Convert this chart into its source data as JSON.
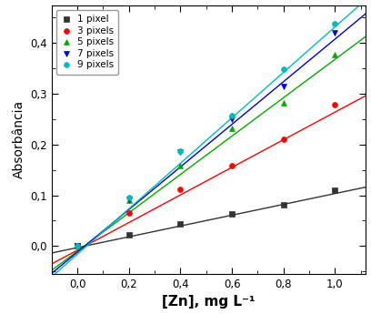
{
  "title": "",
  "xlabel": "[Zn], mg L⁻¹",
  "ylabel": "Absorbância",
  "xlim": [
    -0.1,
    1.12
  ],
  "ylim": [
    -0.055,
    0.475
  ],
  "xticks": [
    0.0,
    0.2,
    0.4,
    0.6,
    0.8,
    1.0
  ],
  "yticks": [
    0.0,
    0.1,
    0.2,
    0.3,
    0.4
  ],
  "ytick_labels": [
    "0,0",
    "0,1",
    "0,2",
    "0,3",
    "0,4"
  ],
  "xtick_labels": [
    "0,0",
    "0,2",
    "0,4",
    "0,6",
    "0,8",
    "1,0"
  ],
  "series": [
    {
      "label": "1 pixel",
      "color": "#333333",
      "marker": "s",
      "x_data": [
        0.0,
        0.2,
        0.4,
        0.6,
        0.8,
        1.0
      ],
      "y_data": [
        0.0,
        0.022,
        0.044,
        0.064,
        0.082,
        0.11
      ],
      "slope": 0.1065,
      "intercept": -0.003
    },
    {
      "label": "3 pixels",
      "color": "#ff0000",
      "marker": "o",
      "x_data": [
        0.0,
        0.2,
        0.4,
        0.6,
        0.8,
        1.0
      ],
      "y_data": [
        0.0,
        0.065,
        0.112,
        0.158,
        0.21,
        0.278
      ],
      "slope": 0.272,
      "intercept": -0.008
    },
    {
      "label": "5 pixels",
      "color": "#00aa00",
      "marker": "^",
      "x_data": [
        0.0,
        0.2,
        0.4,
        0.6,
        0.8,
        1.0
      ],
      "y_data": [
        0.0,
        0.09,
        0.158,
        0.232,
        0.282,
        0.378
      ],
      "slope": 0.378,
      "intercept": -0.01
    },
    {
      "label": "7 pixels",
      "color": "#0000cc",
      "marker": "v",
      "x_data": [
        0.0,
        0.2,
        0.4,
        0.6,
        0.8,
        1.0
      ],
      "y_data": [
        0.0,
        0.092,
        0.185,
        0.25,
        0.315,
        0.42
      ],
      "slope": 0.42,
      "intercept": -0.012
    },
    {
      "label": "9 pixels",
      "color": "#00bbbb",
      "marker": "o",
      "x_data": [
        0.0,
        0.2,
        0.4,
        0.6,
        0.8,
        1.0
      ],
      "y_data": [
        0.0,
        0.095,
        0.188,
        0.258,
        0.348,
        0.438
      ],
      "slope": 0.448,
      "intercept": -0.016
    }
  ],
  "legend_loc": "upper left",
  "legend_fontsize": 7.5,
  "tick_fontsize": 8.5,
  "label_fontsize": 10,
  "xlabel_fontsize": 11,
  "background_color": "#ffffff",
  "line_start_x": -0.1,
  "line_end_x": 1.12
}
